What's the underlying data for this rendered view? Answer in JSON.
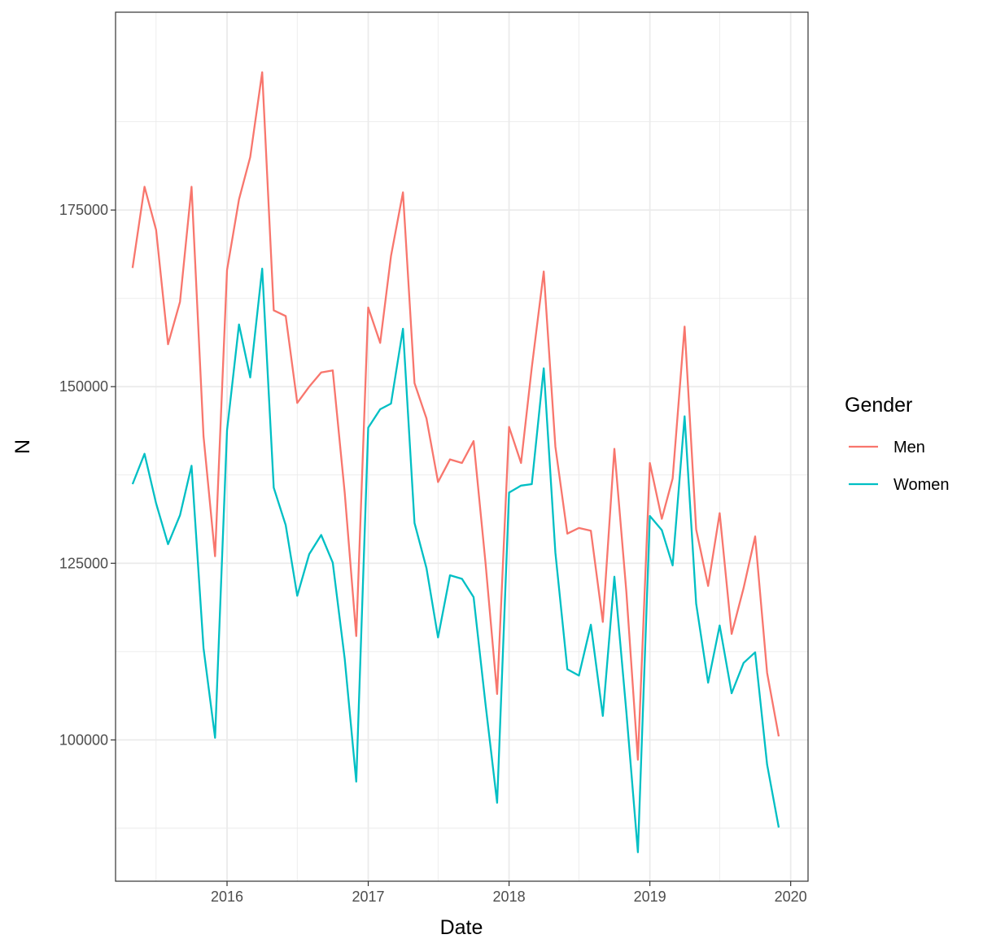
{
  "chart_data": {
    "type": "line",
    "xlabel": "Date",
    "ylabel": "N",
    "x_ticks": [
      "2016",
      "2017",
      "2018",
      "2019",
      "2020"
    ],
    "y_ticks": [
      "100000",
      "125000",
      "150000",
      "175000"
    ],
    "xlim": [
      "2015-03-18",
      "2020-02-15"
    ],
    "ylim": [
      80000,
      203000
    ],
    "grid": true,
    "legend": {
      "title": "Gender",
      "placement": "right"
    },
    "x": [
      "2015-05",
      "2015-06",
      "2015-07",
      "2015-08",
      "2015-09",
      "2015-10",
      "2015-11",
      "2015-12",
      "2016-01",
      "2016-02",
      "2016-03",
      "2016-04",
      "2016-05",
      "2016-06",
      "2016-07",
      "2016-08",
      "2016-09",
      "2016-10",
      "2016-11",
      "2016-12",
      "2017-01",
      "2017-02",
      "2017-03",
      "2017-04",
      "2017-05",
      "2017-06",
      "2017-07",
      "2017-08",
      "2017-09",
      "2017-10",
      "2017-11",
      "2017-12",
      "2018-01",
      "2018-02",
      "2018-03",
      "2018-04",
      "2018-05",
      "2018-06",
      "2018-07",
      "2018-08",
      "2018-09",
      "2018-10",
      "2018-11",
      "2018-12",
      "2019-01",
      "2019-02",
      "2019-03",
      "2019-04",
      "2019-05",
      "2019-06",
      "2019-07",
      "2019-08",
      "2019-09",
      "2019-10",
      "2019-11",
      "2019-12"
    ],
    "series": [
      {
        "name": "Men",
        "color": "#F8766D",
        "values": [
          166800,
          178300,
          172200,
          156000,
          162000,
          178300,
          143000,
          126000,
          166500,
          176500,
          182500,
          194500,
          160800,
          160000,
          147700,
          150000,
          152000,
          152300,
          135000,
          114700,
          161200,
          156200,
          168500,
          177500,
          150500,
          145500,
          136500,
          139700,
          139200,
          142300,
          125000,
          106500,
          144300,
          139200,
          152700,
          166300,
          141500,
          129200,
          130000,
          129600,
          116700,
          141200,
          121000,
          97200,
          139200,
          131300,
          137000,
          158500,
          129800,
          121800,
          132100,
          115000,
          121500,
          128800,
          109500,
          100500
        ]
      },
      {
        "name": "Women",
        "color": "#00BFC4",
        "values": [
          136200,
          140500,
          133500,
          127700,
          131800,
          138800,
          113000,
          100300,
          143800,
          158800,
          151300,
          166700,
          135700,
          130400,
          120400,
          126300,
          129000,
          125100,
          111500,
          94100,
          144200,
          146800,
          147600,
          158200,
          130700,
          124300,
          114500,
          123300,
          122800,
          120200,
          105000,
          91100,
          135000,
          136000,
          136200,
          152600,
          126500,
          110000,
          109100,
          116300,
          103400,
          123100,
          104000,
          84100,
          131700,
          129700,
          124700,
          145800,
          119300,
          108100,
          116200,
          106600,
          110900,
          112400,
          96500,
          87600
        ]
      }
    ]
  }
}
